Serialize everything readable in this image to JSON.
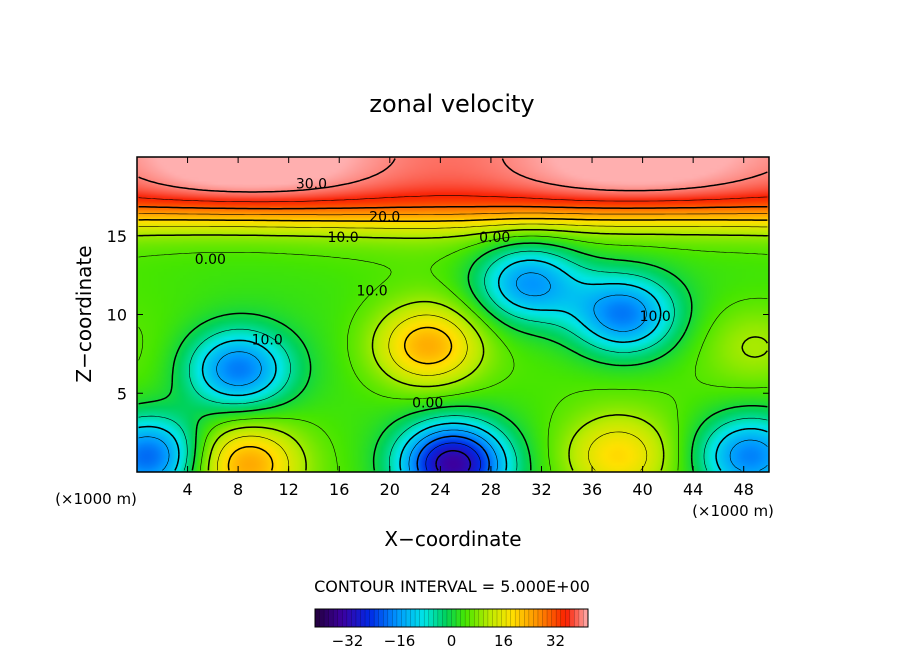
{
  "chart_data": {
    "type": "heatmap",
    "title": "zonal velocity",
    "xlabel": "X−coordinate",
    "ylabel": "Z−coordinate",
    "x_unit": "(×1000 m)",
    "z_unit": "(×1000 m)",
    "xlim": [
      0,
      50
    ],
    "ylim": [
      0,
      20
    ],
    "x_ticks": [
      4,
      8,
      12,
      16,
      20,
      24,
      28,
      32,
      36,
      40,
      44,
      48
    ],
    "y_ticks": [
      5,
      10,
      15
    ],
    "contour_interval_label": "CONTOUR INTERVAL = 5.000E+00",
    "contour_interval": 5,
    "colorbar": {
      "min": -42,
      "max": 42,
      "ticks": [
        -32,
        -16,
        0,
        16,
        32
      ]
    },
    "contour_labels": [
      {
        "text": "30.0",
        "x": 13.8,
        "z": 18.0
      },
      {
        "text": "20.0",
        "x": 19.6,
        "z": 15.9
      },
      {
        "text": "10.0",
        "x": 16.3,
        "z": 14.6
      },
      {
        "text": "0.00",
        "x": 28.3,
        "z": 14.6
      },
      {
        "text": "0.00",
        "x": 5.8,
        "z": 13.2
      },
      {
        "text": "10.0",
        "x": 18.6,
        "z": 11.2
      },
      {
        "text": "10.0",
        "x": 41.0,
        "z": 9.6
      },
      {
        "text": "10.0",
        "x": 10.3,
        "z": 8.1
      },
      {
        "text": "0.00",
        "x": 23.0,
        "z": 4.1
      }
    ],
    "features": [
      {
        "kind": "jet",
        "value": 40,
        "z_center": 19.0,
        "comment": "strong eastward flow near top"
      },
      {
        "kind": "max",
        "value": 25,
        "x": 23.0,
        "z": 8.0
      },
      {
        "kind": "max",
        "value": 12,
        "x": 49.0,
        "z": 8.0
      },
      {
        "kind": "max",
        "value": 6,
        "x": 0.5,
        "z": 7.5
      },
      {
        "kind": "max",
        "value": 25,
        "x": 8.6,
        "z": 0.5
      },
      {
        "kind": "max",
        "value": 20,
        "x": 38.0,
        "z": 1.0
      },
      {
        "kind": "min",
        "value": -18,
        "x": 8.0,
        "z": 6.5
      },
      {
        "kind": "min",
        "value": -18,
        "x": 38.5,
        "z": 10.0
      },
      {
        "kind": "min",
        "value": -16,
        "x": 31.0,
        "z": 12.0
      },
      {
        "kind": "min",
        "value": -32,
        "x": 25.0,
        "z": 0.5
      },
      {
        "kind": "min",
        "value": -20,
        "x": 1.0,
        "z": 1.0
      },
      {
        "kind": "min",
        "value": -18,
        "x": 48.5,
        "z": 1.0
      }
    ]
  }
}
